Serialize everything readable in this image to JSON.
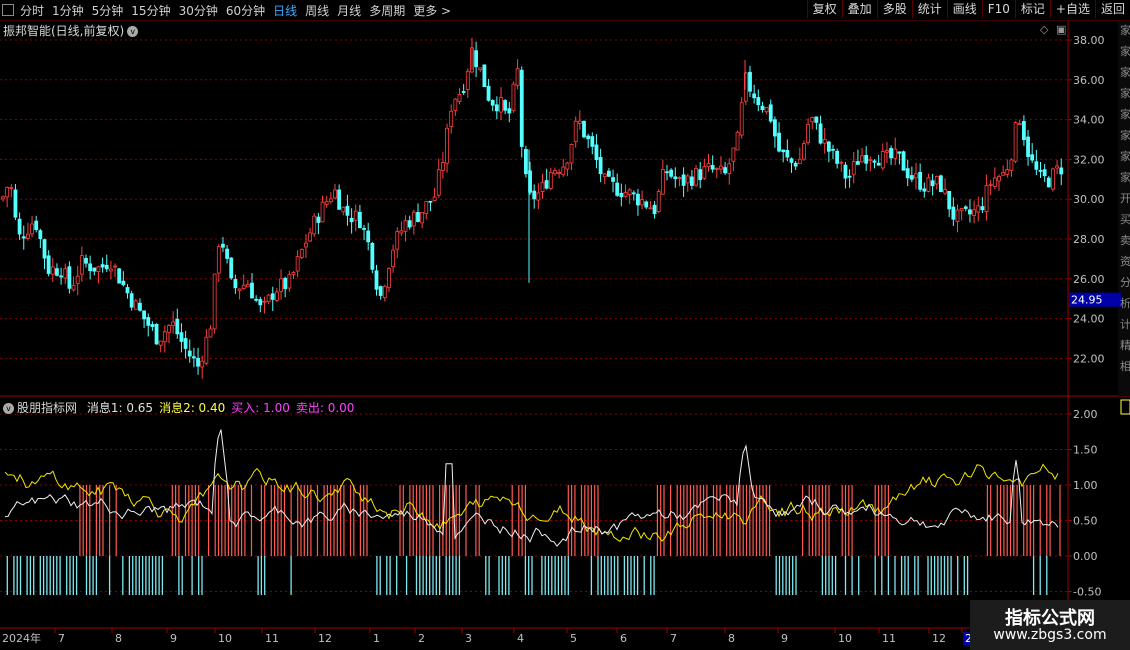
{
  "toolbar": {
    "periods": [
      "分时",
      "1分钟",
      "5分钟",
      "15分钟",
      "30分钟",
      "60分钟",
      "日线",
      "周线",
      "月线",
      "多周期",
      "更多 >"
    ],
    "active_period": "日线",
    "actions": [
      "复权",
      "叠加",
      "多股",
      "统计",
      "画线",
      "F10",
      "标记",
      "+自选",
      "返回"
    ]
  },
  "main_chart": {
    "title": "振邦智能(日线,前复权)",
    "y_ticks": [
      "38.00",
      "36.00",
      "34.00",
      "32.00",
      "30.00",
      "28.00",
      "26.00",
      "24.00",
      "22.00"
    ],
    "price_tag": "24.95",
    "side_strip_text": "家家家家家家家家开买卖资分析计精相"
  },
  "indicator": {
    "name": "股朋指标网",
    "items": [
      {
        "label": "消息1:",
        "value": "0.65",
        "color": "#e0e0e0"
      },
      {
        "label": "消息2:",
        "value": "0.40",
        "color": "#ffff40"
      },
      {
        "label": "买入:",
        "value": "1.00",
        "color": "#ff40ff"
      },
      {
        "label": "卖出:",
        "value": "0.00",
        "color": "#ff40ff"
      }
    ],
    "y_ticks": [
      "2.00",
      "1.50",
      "1.00",
      "0.50",
      "0.00",
      "-0.50"
    ]
  },
  "time_axis": {
    "labels": [
      "2024年",
      "7",
      "8",
      "9",
      "10",
      "11",
      "12",
      "1",
      "2",
      "3",
      "4",
      "5",
      "6",
      "7",
      "8",
      "9",
      "10",
      "11",
      "12",
      "2"
    ]
  },
  "watermark": {
    "line1": "指标公式网",
    "line2": "www.zbgs3.com"
  },
  "colors": {
    "up": "#ff4040",
    "down": "#54ffff",
    "grid": "#8a0000",
    "axis_text": "#c0c0c0",
    "buy_bar": "#ff5a50",
    "sell_bar": "#7fe8f0"
  }
}
